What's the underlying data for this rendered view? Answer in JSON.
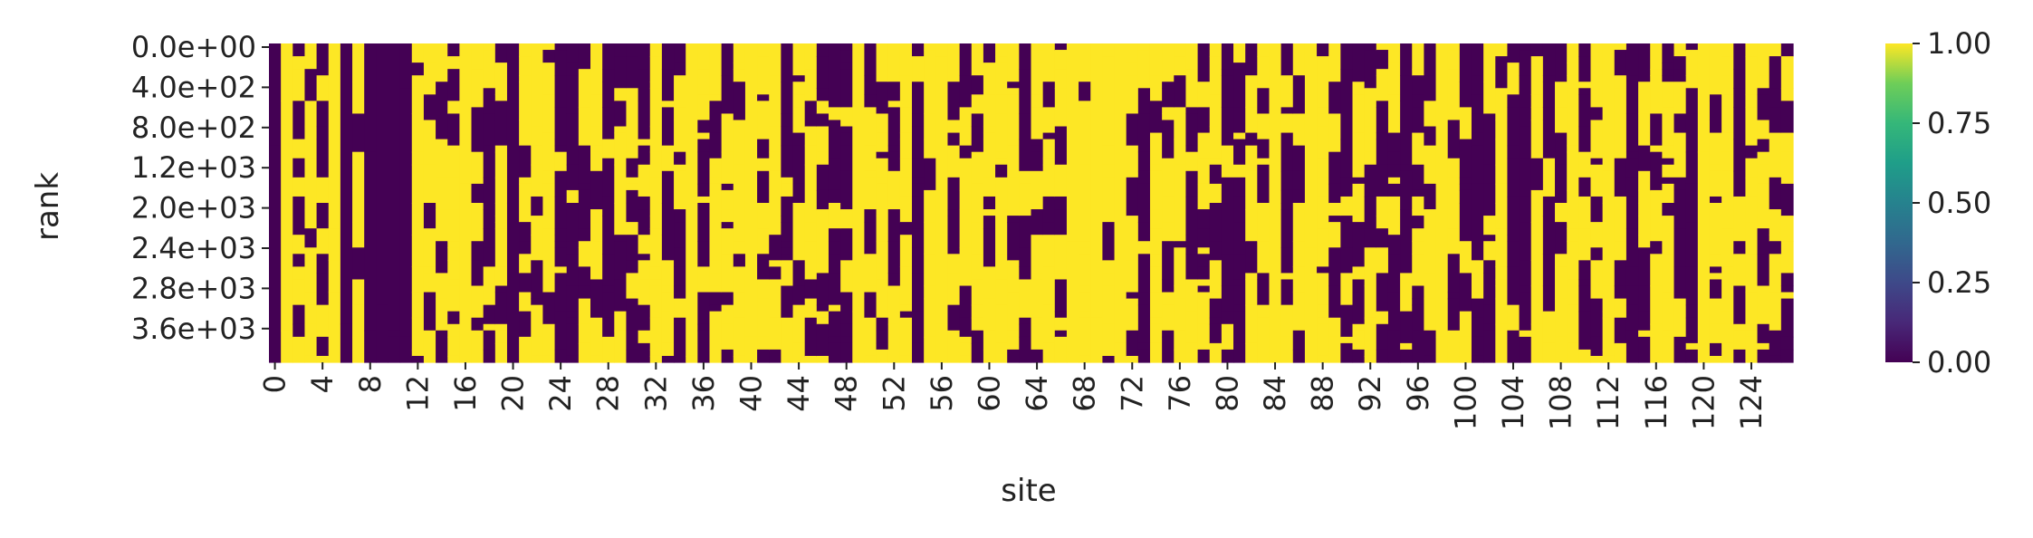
{
  "chart_data": {
    "type": "heatmap",
    "xlabel": "site",
    "ylabel": "rank",
    "colormap": "viridis",
    "vmin": 0.0,
    "vmax": 1.0,
    "n_cols": 128,
    "n_rows": 50,
    "x_tick_labels": [
      "0",
      "4",
      "8",
      "12",
      "16",
      "20",
      "24",
      "28",
      "32",
      "36",
      "40",
      "44",
      "48",
      "52",
      "56",
      "60",
      "64",
      "68",
      "72",
      "76",
      "80",
      "84",
      "88",
      "92",
      "96",
      "100",
      "104",
      "108",
      "112",
      "116",
      "120",
      "124"
    ],
    "y_tick_labels": [
      "0.0e+00",
      "4.0e+02",
      "8.0e+02",
      "1.2e+03",
      "2.0e+03",
      "2.4e+03",
      "2.8e+03",
      "3.6e+03"
    ],
    "colorbar_tick_labels": [
      "0.00",
      "0.25",
      "0.50",
      "0.75",
      "1.00"
    ],
    "colorbar_tick_values": [
      0.0,
      0.25,
      0.5,
      0.75,
      1.0
    ],
    "grid": false,
    "colors": {
      "low": "#440154",
      "high": "#fde725",
      "mid": "#21918c"
    },
    "column_profile_yellow_fraction": [
      0.0,
      1.0,
      0.6,
      0.8,
      0.35,
      1.0,
      0.0,
      0.85,
      0.0,
      0.0,
      0.0,
      0.0,
      0.75,
      0.5,
      0.7,
      0.85,
      1.0,
      0.6,
      0.55,
      0.7,
      0.0,
      0.6,
      0.85,
      0.7,
      0.3,
      0.05,
      0.6,
      0.85,
      0.3,
      0.55,
      0.7,
      0.45,
      0.9,
      0.3,
      0.4,
      1.0,
      0.4,
      0.7,
      0.75,
      0.95,
      1.0,
      0.6,
      0.9,
      0.3,
      0.5,
      0.7,
      0.4,
      0.25,
      0.35,
      1.0,
      0.4,
      0.55,
      0.65,
      0.7,
      0.25,
      0.9,
      1.0,
      0.4,
      0.6,
      0.5,
      0.45,
      0.85,
      0.75,
      0.35,
      0.55,
      0.8,
      0.55,
      1.0,
      0.9,
      1.0,
      0.75,
      1.0,
      0.6,
      0.35,
      0.85,
      0.5,
      0.7,
      0.6,
      0.4,
      0.55,
      0.25,
      0.35,
      0.7,
      0.5,
      1.0,
      0.55,
      0.5,
      1.0,
      0.9,
      0.45,
      0.3,
      0.55,
      0.6,
      0.45,
      0.7,
      0.3,
      0.5,
      0.45,
      1.0,
      0.7,
      0.4,
      0.05,
      0.55,
      0.9,
      0.05,
      0.1,
      0.8,
      0.3,
      0.6,
      0.85,
      0.25,
      0.6,
      0.8,
      0.4,
      0.15,
      0.5,
      0.7,
      0.55,
      0.3,
      0.15,
      1.0,
      0.7,
      0.85,
      0.5,
      0.95,
      0.6,
      0.4,
      0.3
    ]
  }
}
